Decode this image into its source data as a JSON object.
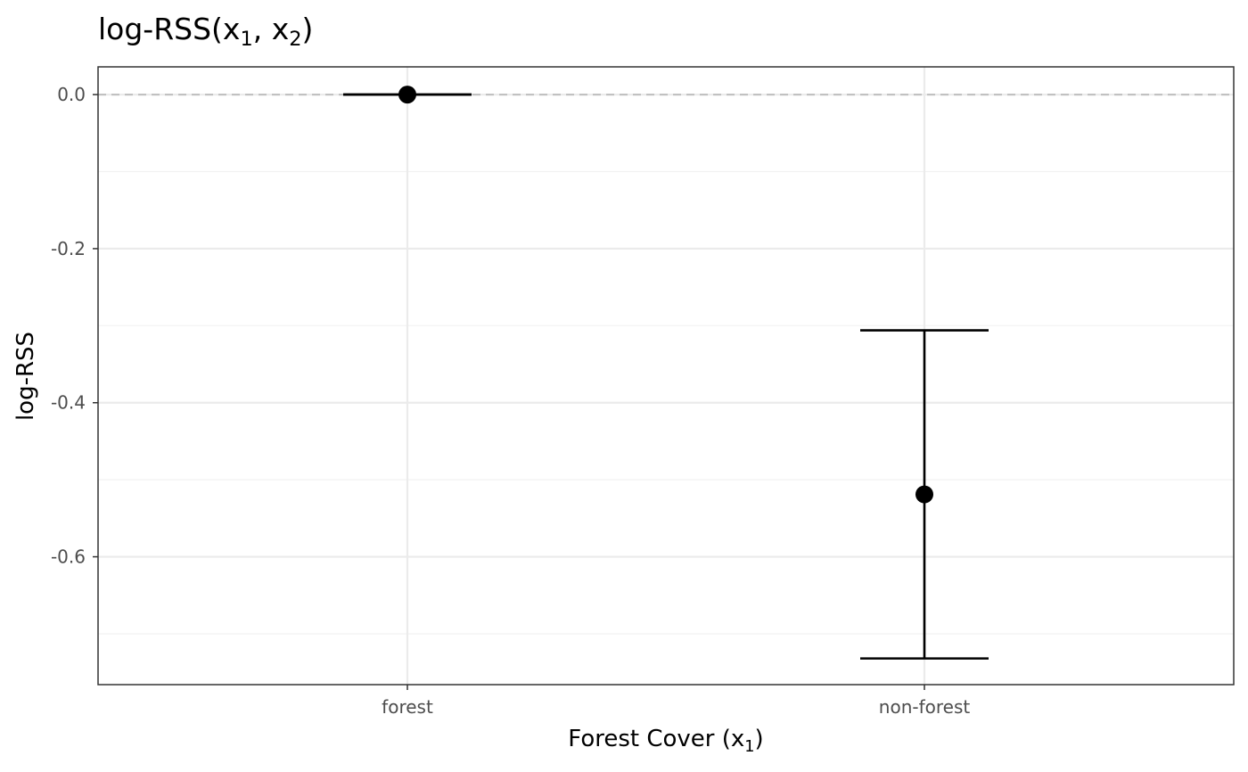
{
  "chart_data": {
    "type": "scatter",
    "title": {
      "main": "log-RSS(x",
      "sub1": "1",
      "sep": ", x",
      "sub2": "2",
      "close": ")"
    },
    "xlabel": {
      "main": "Forest Cover (x",
      "sub": "1",
      "close": ")"
    },
    "ylabel": "log-RSS",
    "categories": [
      "forest",
      "non-forest"
    ],
    "points": [
      {
        "x": "forest",
        "y": 0.0,
        "lower": 0.0,
        "upper": 0.0
      },
      {
        "x": "non-forest",
        "y": -0.519,
        "lower": -0.732,
        "upper": -0.306
      }
    ],
    "ylim": [
      -0.766,
      0.036
    ],
    "yticks": [
      0.0,
      -0.2,
      -0.4,
      -0.6
    ],
    "ytick_labels": [
      "0.0",
      "-0.2",
      "-0.4",
      "-0.6"
    ],
    "reference_line": {
      "y": 0,
      "style": "dashed",
      "color": "#bfbfbf"
    },
    "grid": true,
    "legend": "none",
    "colors": {
      "point": "#000000",
      "grid_major": "#ebebeb",
      "grid_minor": "#f2f2f2",
      "panel_border": "#333333"
    }
  }
}
